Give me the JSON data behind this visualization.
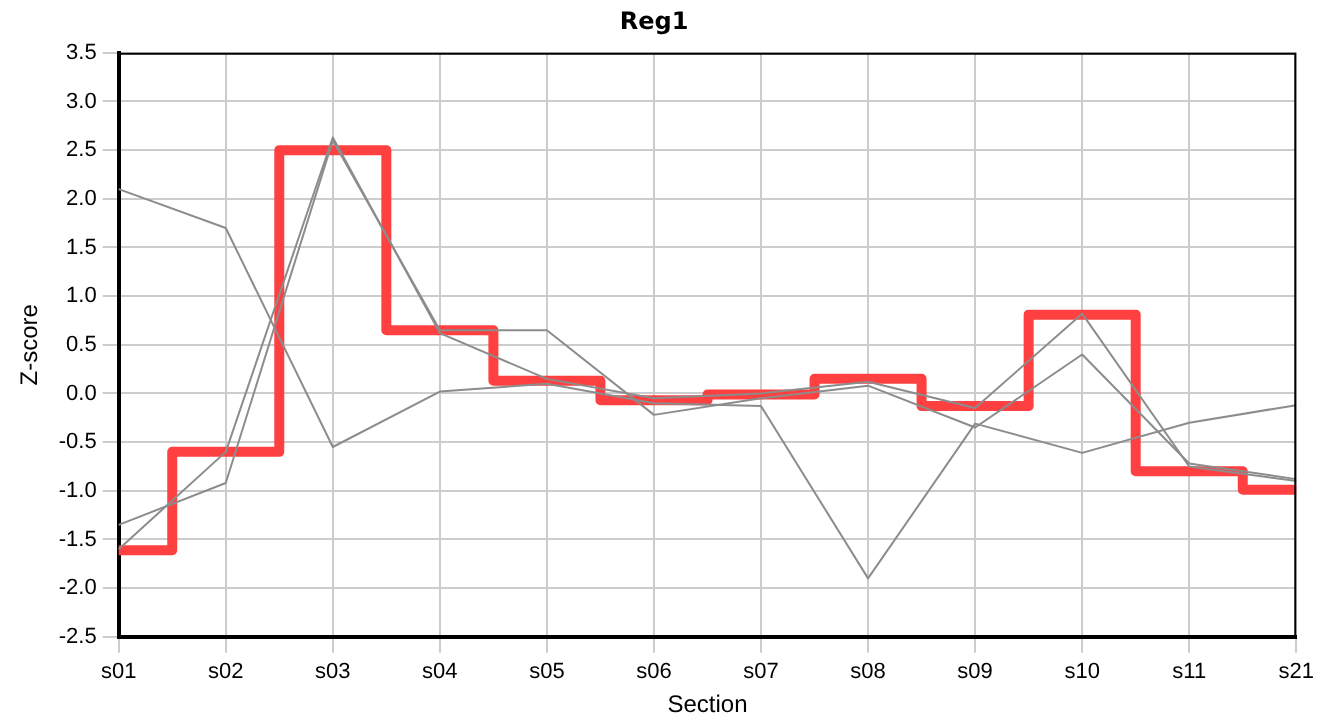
{
  "chart_data": {
    "type": "line",
    "title": "Reg1",
    "xlabel": "Section",
    "ylabel": "Z-score",
    "categories": [
      "s01",
      "s02",
      "s03",
      "s04",
      "s05",
      "s06",
      "s07",
      "s08",
      "s09",
      "s10",
      "s11",
      "s21"
    ],
    "series": [
      {
        "type": "line",
        "color": "#8c8c8c",
        "values": [
          2.1,
          1.7,
          -0.55,
          0.02,
          0.1,
          -0.1,
          -0.13,
          -1.9,
          -0.31,
          -0.61,
          -0.3,
          -0.12
        ]
      },
      {
        "type": "line",
        "color": "#8c8c8c",
        "values": [
          -1.35,
          -0.92,
          2.6,
          0.65,
          0.65,
          -0.22,
          -0.05,
          0.08,
          -0.35,
          0.4,
          -0.72,
          -0.88
        ]
      },
      {
        "type": "line",
        "color": "#8c8c8c",
        "values": [
          -1.6,
          -0.6,
          2.63,
          0.62,
          0.15,
          -0.05,
          0.0,
          0.12,
          -0.15,
          0.82,
          -0.75,
          -0.9
        ]
      },
      {
        "type": "step",
        "color": "#ff4040",
        "values": [
          -1.61,
          -0.6,
          2.5,
          0.65,
          0.13,
          -0.07,
          -0.01,
          0.15,
          -0.13,
          0.81,
          -0.8,
          -0.99
        ]
      }
    ],
    "ylim": [
      -2.5,
      3.5
    ],
    "yticks": [
      -2.5,
      {
        "value": -2,
        "label": "-2.0"
      },
      -1.5,
      {
        "value": -1,
        "label": "-1.0"
      },
      -0.5,
      {
        "value": 0,
        "label": "0.0"
      },
      0.5,
      {
        "value": 1,
        "label": "1.0"
      },
      1.5,
      {
        "value": 2,
        "label": "2.0"
      },
      2.5,
      {
        "value": 3,
        "label": "3.0"
      },
      3.5
    ],
    "grid": true,
    "legend": false,
    "marker": "none"
  }
}
